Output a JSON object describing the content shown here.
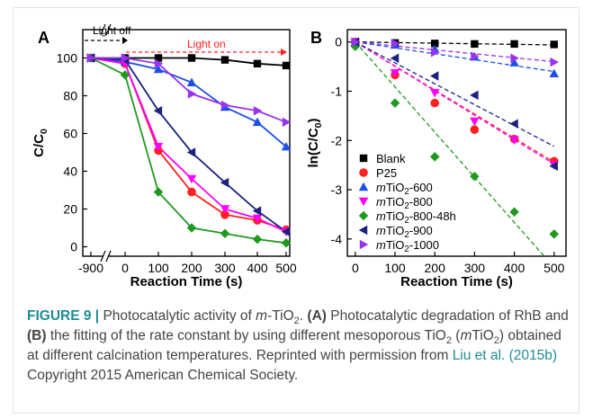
{
  "chart_data": [
    {
      "panel_label": "A",
      "type": "line",
      "xlabel": "Reaction Time (s)",
      "ylabel": "C/C0",
      "x": [
        -900,
        0,
        100,
        200,
        300,
        400,
        500
      ],
      "x_tick_labels": [
        "-900",
        "0",
        "100",
        "200",
        "300",
        "400",
        "500"
      ],
      "y_ticks": [
        0,
        20,
        40,
        60,
        80,
        100
      ],
      "ylim": [
        -5,
        115
      ],
      "axis_break": "between -900 and 0",
      "annotations": {
        "light_off": "Light off",
        "light_on": "Light on"
      },
      "series": [
        {
          "color": "#000000",
          "marker": "square",
          "values": [
            100,
            100,
            100,
            100,
            99,
            97,
            96
          ]
        },
        {
          "color": "#ff2020",
          "marker": "circle",
          "values": [
            100,
            97,
            51,
            29,
            17,
            14,
            9
          ]
        },
        {
          "color": "#1e4fe6",
          "marker": "triangle-up",
          "values": [
            100,
            98,
            94,
            87,
            74,
            66,
            53
          ]
        },
        {
          "color": "#ff00ff",
          "marker": "triangle-down",
          "values": [
            100,
            97,
            53,
            36,
            20,
            15,
            8
          ]
        },
        {
          "color": "#1e9a1e",
          "marker": "diamond",
          "values": [
            100,
            91,
            29,
            10,
            7,
            4,
            2
          ]
        },
        {
          "color": "#1a237e",
          "marker": "triangle-left",
          "values": [
            100,
            99,
            72,
            50,
            34,
            19,
            8
          ]
        },
        {
          "color": "#9933ee",
          "marker": "triangle-right",
          "values": [
            100,
            100,
            97,
            81,
            75,
            72,
            66
          ]
        }
      ]
    },
    {
      "panel_label": "B",
      "type": "scatter",
      "xlabel": "Reaction Time (s)",
      "ylabel": "ln(C/C0)",
      "x": [
        0,
        100,
        200,
        300,
        400,
        500
      ],
      "x_ticks": [
        0,
        100,
        200,
        300,
        400,
        500
      ],
      "y_ticks": [
        0,
        -1,
        -2,
        -3,
        -4
      ],
      "xlim": [
        -20,
        530
      ],
      "ylim": [
        -4.35,
        0.25
      ],
      "fit_lines": "dashed linear fits",
      "series": [
        {
          "name": "Blank",
          "color": "#000000",
          "marker": "square",
          "values": [
            0,
            -0.02,
            -0.03,
            -0.04,
            -0.04,
            -0.05
          ],
          "fit_end": -0.06
        },
        {
          "name": "P25",
          "color": "#ff2020",
          "marker": "circle",
          "values": [
            0,
            -0.67,
            -1.24,
            -1.78,
            -1.97,
            -2.42
          ],
          "fit_end": -2.44
        },
        {
          "name": "mTiO2-600",
          "color": "#1e4fe6",
          "marker": "triangle-up",
          "values": [
            0,
            -0.06,
            -0.15,
            -0.3,
            -0.42,
            -0.64
          ],
          "fit_end": -0.6
        },
        {
          "name": "mTiO2-800",
          "color": "#ff00ff",
          "marker": "triangle-down",
          "values": [
            0,
            -0.63,
            -1.03,
            -1.61,
            -1.99,
            -2.5
          ],
          "fit_end": -2.48
        },
        {
          "name": "mTiO2-800-48h",
          "color": "#1e9a1e",
          "marker": "diamond",
          "values": [
            -0.09,
            -1.24,
            -2.33,
            -2.73,
            -3.45,
            -3.9
          ],
          "fit_end": -4.35,
          "fit_end_x": 475
        },
        {
          "name": "mTiO2-900",
          "color": "#1a237e",
          "marker": "triangle-left",
          "values": [
            0,
            -0.33,
            -0.69,
            -1.08,
            -1.66,
            -2.52
          ],
          "fit_end": -2.12
        },
        {
          "name": "mTiO2-1000",
          "color": "#9933ee",
          "marker": "triangle-right",
          "values": [
            0,
            -0.03,
            -0.21,
            -0.29,
            -0.33,
            -0.41
          ],
          "fit_end": -0.4
        }
      ],
      "legend_placement": "bottom-left"
    }
  ],
  "caption": {
    "label": "FIGURE 9 |",
    "t1": " Photocatalytic activity of ",
    "t2": "m",
    "t3": "-TiO",
    "t4": "2",
    "t5": ". ",
    "t6": "(A)",
    "t7": " Photocatalytic degradation of RhB and ",
    "t8": "(B)",
    "t9": " the fitting of the rate constant by using different mesoporous TiO",
    "t10": "2",
    "t11": " (",
    "t12": "m",
    "t13": "TiO",
    "t14": "2",
    "t15": ") obtained at different calcination temperatures. Reprinted with permission from ",
    "t16": "Liu et al. (2015b)",
    "t17": " Copyright 2015 American Chemical Society."
  }
}
